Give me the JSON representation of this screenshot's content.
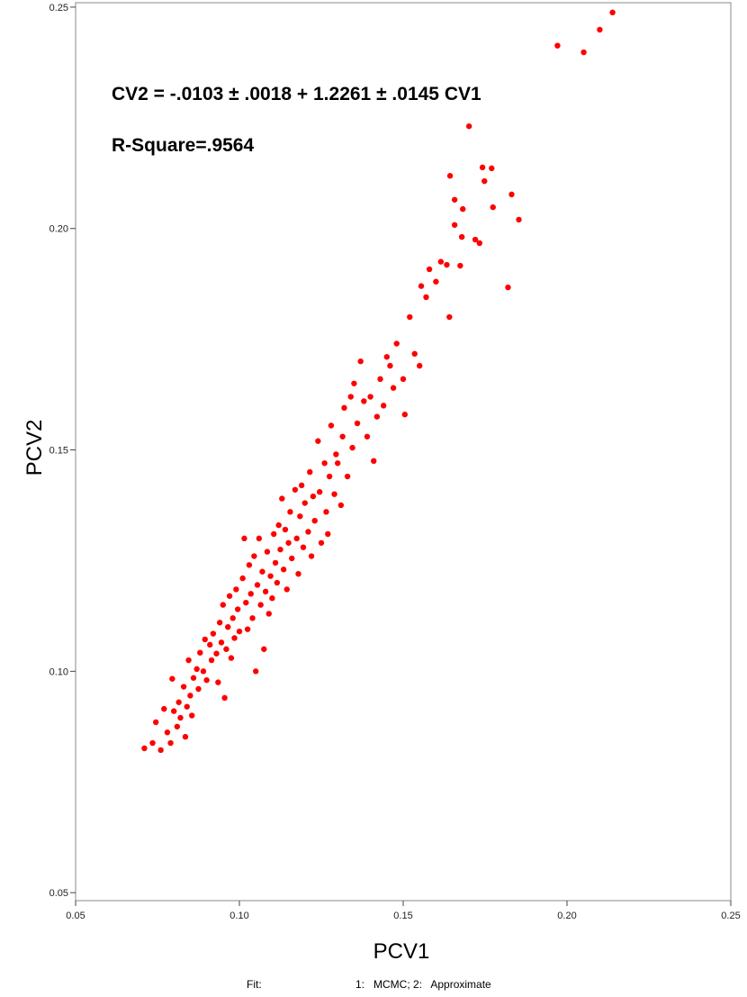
{
  "chart_data": {
    "type": "scatter",
    "annotations": [
      "CV2 = -.0103 ± .0018 + 1.2261 ± .0145 CV1",
      "R-Square=.9564"
    ],
    "x_label": "PCV1",
    "y_label": "PCV2",
    "footnote": [
      "Fit:",
      "1:   MCMC; 2:   Approximate"
    ],
    "color": "#ff0000",
    "xlim": [
      0.05,
      0.25
    ],
    "ylim": [
      0.0482,
      0.251
    ],
    "xticks": [
      0.05,
      {
        "value": 0.1,
        "label": "0.10"
      },
      0.15,
      {
        "value": 0.2,
        "label": "0.20"
      },
      0.25
    ],
    "yticks": [
      0.05,
      {
        "value": 0.1,
        "label": "0.10"
      },
      0.15,
      {
        "value": 0.2,
        "label": "0.20"
      },
      0.25
    ],
    "x": [
      0.071,
      0.0735,
      0.0745,
      0.076,
      0.077,
      0.078,
      0.079,
      0.0795,
      0.08,
      0.081,
      0.0815,
      0.082,
      0.083,
      0.0835,
      0.084,
      0.0845,
      0.085,
      0.0855,
      0.086,
      0.087,
      0.0875,
      0.088,
      0.089,
      0.0895,
      0.09,
      0.091,
      0.0915,
      0.092,
      0.093,
      0.0935,
      0.094,
      0.0945,
      0.095,
      0.0955,
      0.096,
      0.0965,
      0.097,
      0.0975,
      0.098,
      0.0985,
      0.099,
      0.0995,
      0.1,
      0.101,
      0.1015,
      0.102,
      0.1025,
      0.103,
      0.1035,
      0.104,
      0.1045,
      0.105,
      0.1055,
      0.106,
      0.1065,
      0.107,
      0.1075,
      0.108,
      0.1085,
      0.109,
      0.1095,
      0.11,
      0.1105,
      0.111,
      0.1115,
      0.112,
      0.1125,
      0.113,
      0.1135,
      0.114,
      0.1145,
      0.115,
      0.1155,
      0.116,
      0.117,
      0.1175,
      0.118,
      0.1185,
      0.119,
      0.1195,
      0.12,
      0.121,
      0.1215,
      0.122,
      0.1225,
      0.123,
      0.124,
      0.1245,
      0.125,
      0.126,
      0.1265,
      0.127,
      0.1275,
      0.128,
      0.129,
      0.1295,
      0.13,
      0.131,
      0.1315,
      0.132,
      0.133,
      0.134,
      0.1345,
      0.135,
      0.136,
      0.137,
      0.138,
      0.139,
      0.14,
      0.141,
      0.142,
      0.143,
      0.144,
      0.145,
      0.146,
      0.147,
      0.148,
      0.15,
      0.1505,
      0.152,
      0.1535,
      0.155,
      0.1555,
      0.157,
      0.158,
      0.16,
      0.1615,
      0.1633,
      0.1641,
      0.1643,
      0.1657,
      0.1657,
      0.1674,
      0.1679,
      0.1682,
      0.1701,
      0.172,
      0.1733,
      0.1742,
      0.1748,
      0.177,
      0.1774,
      0.182,
      0.1831,
      0.1853,
      0.1971,
      0.2051,
      0.21,
      0.2139
    ],
    "y": [
      0.0826,
      0.0838,
      0.0885,
      0.0822,
      0.0915,
      0.0862,
      0.0838,
      0.0983,
      0.091,
      0.0875,
      0.093,
      0.0895,
      0.0965,
      0.0852,
      0.092,
      0.1025,
      0.0945,
      0.09,
      0.0985,
      0.1005,
      0.096,
      0.1042,
      0.1,
      0.1072,
      0.098,
      0.106,
      0.1025,
      0.1085,
      0.104,
      0.0975,
      0.111,
      0.1065,
      0.115,
      0.094,
      0.105,
      0.11,
      0.117,
      0.103,
      0.112,
      0.1075,
      0.1185,
      0.114,
      0.109,
      0.121,
      0.13,
      0.1155,
      0.1095,
      0.124,
      0.1175,
      0.112,
      0.126,
      0.1,
      0.1195,
      0.13,
      0.115,
      0.1225,
      0.105,
      0.118,
      0.127,
      0.113,
      0.1215,
      0.1165,
      0.131,
      0.1245,
      0.12,
      0.133,
      0.1275,
      0.139,
      0.123,
      0.132,
      0.1185,
      0.129,
      0.136,
      0.1255,
      0.141,
      0.13,
      0.122,
      0.135,
      0.142,
      0.128,
      0.138,
      0.1315,
      0.145,
      0.126,
      0.1395,
      0.134,
      0.152,
      0.1405,
      0.129,
      0.147,
      0.136,
      0.131,
      0.144,
      0.1555,
      0.14,
      0.149,
      0.147,
      0.1375,
      0.153,
      0.1595,
      0.144,
      0.162,
      0.1505,
      0.165,
      0.156,
      0.17,
      0.161,
      0.153,
      0.162,
      0.1475,
      0.1575,
      0.166,
      0.16,
      0.171,
      0.169,
      0.164,
      0.174,
      0.166,
      0.158,
      0.18,
      0.1717,
      0.169,
      0.187,
      0.1845,
      0.1908,
      0.188,
      0.1925,
      0.1918,
      0.18,
      0.2119,
      0.2065,
      0.2008,
      0.1916,
      0.1981,
      0.2044,
      0.2231,
      0.1975,
      0.1967,
      0.2138,
      0.2107,
      0.2136,
      0.2048,
      0.1867,
      0.2077,
      0.202,
      0.2413,
      0.2398,
      0.2449,
      0.2488
    ]
  }
}
